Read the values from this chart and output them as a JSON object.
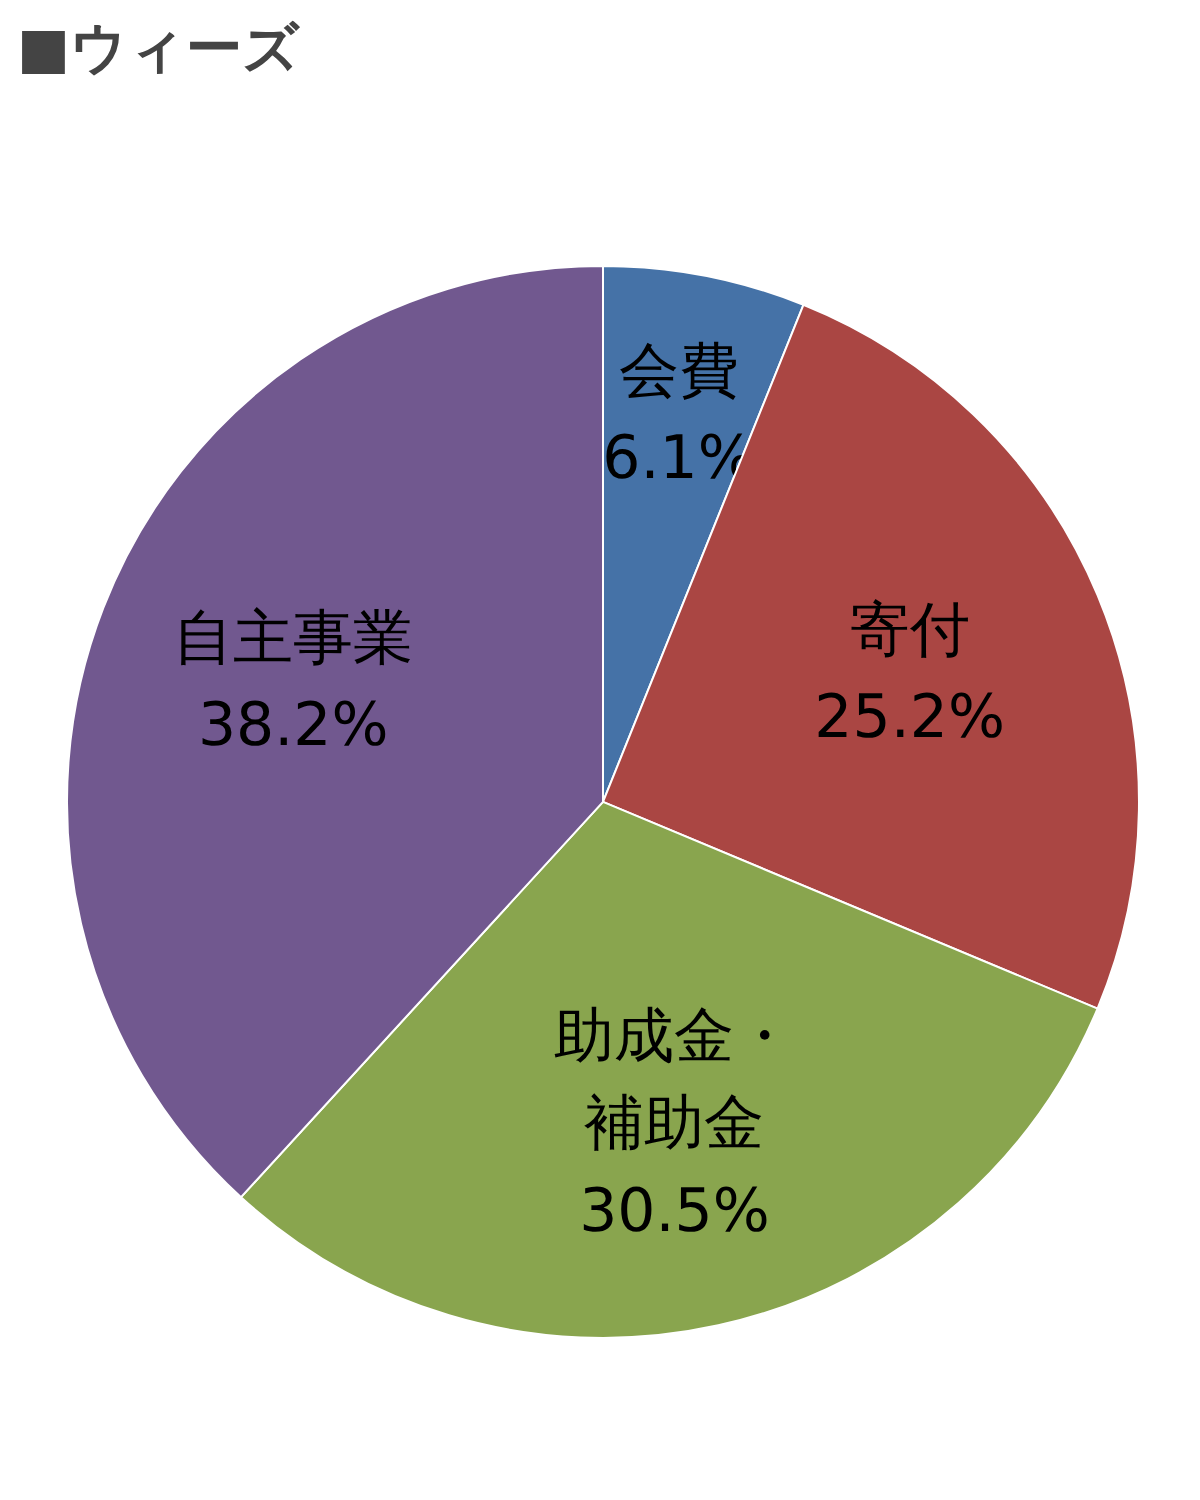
{
  "chart_data": {
    "type": "pie",
    "title": "■ウィーズ",
    "categories": [
      "会費",
      "寄付",
      "助成金・補助金",
      "自主事業"
    ],
    "values": [
      6.1,
      25.2,
      30.5,
      38.2
    ],
    "colors": [
      "#4572a7",
      "#aa4643",
      "#89a54e",
      "#71588f"
    ],
    "value_labels": [
      "6.1%",
      "25.2%",
      "30.5%",
      "38.2%"
    ],
    "legend": false
  }
}
